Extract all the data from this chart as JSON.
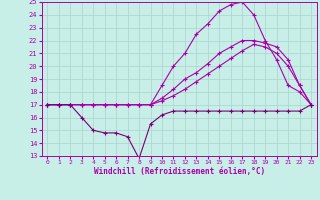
{
  "xlabel": "Windchill (Refroidissement éolien,°C)",
  "ylabel": "",
  "xlim": [
    -0.5,
    23.5
  ],
  "ylim": [
    13,
    25
  ],
  "yticks": [
    13,
    14,
    15,
    16,
    17,
    18,
    19,
    20,
    21,
    22,
    23,
    24,
    25
  ],
  "xticks": [
    0,
    1,
    2,
    3,
    4,
    5,
    6,
    7,
    8,
    9,
    10,
    11,
    12,
    13,
    14,
    15,
    16,
    17,
    18,
    19,
    20,
    21,
    22,
    23
  ],
  "bg_color": "#c8eee8",
  "grid_color": "#aad4cc",
  "line_color": "#aa00aa",
  "line_color_dark": "#770077",
  "line1_x": [
    0,
    1,
    2,
    3,
    4,
    5,
    6,
    7,
    8,
    9,
    10,
    11,
    12,
    13,
    14,
    15,
    16,
    17,
    18,
    19,
    20,
    21,
    22,
    23
  ],
  "line1_y": [
    17.0,
    17.0,
    17.0,
    17.0,
    17.0,
    17.0,
    17.0,
    17.0,
    17.0,
    17.0,
    17.3,
    17.7,
    18.2,
    18.8,
    19.4,
    20.0,
    20.6,
    21.2,
    21.7,
    21.5,
    21.0,
    20.0,
    18.5,
    17.0
  ],
  "line2_x": [
    0,
    1,
    2,
    3,
    4,
    5,
    6,
    7,
    8,
    9,
    10,
    11,
    12,
    13,
    14,
    15,
    16,
    17,
    18,
    19,
    20,
    21,
    22,
    23
  ],
  "line2_y": [
    17.0,
    17.0,
    17.0,
    17.0,
    17.0,
    17.0,
    17.0,
    17.0,
    17.0,
    17.0,
    17.5,
    18.2,
    19.0,
    19.5,
    20.2,
    21.0,
    21.5,
    22.0,
    22.0,
    21.8,
    21.5,
    20.5,
    18.5,
    17.0
  ],
  "line3_x": [
    0,
    1,
    2,
    3,
    4,
    5,
    6,
    7,
    8,
    9,
    10,
    11,
    12,
    13,
    14,
    15,
    16,
    17,
    18,
    19,
    20,
    21,
    22,
    23
  ],
  "line3_y": [
    17.0,
    17.0,
    17.0,
    17.0,
    17.0,
    17.0,
    17.0,
    17.0,
    17.0,
    17.0,
    18.5,
    20.0,
    21.0,
    22.5,
    23.3,
    24.3,
    24.8,
    25.0,
    24.0,
    22.0,
    20.5,
    18.5,
    18.0,
    17.0
  ],
  "line4_x": [
    0,
    1,
    2,
    3,
    4,
    5,
    6,
    7,
    8,
    9,
    10,
    11,
    12,
    13,
    14,
    15,
    16,
    17,
    18,
    19,
    20,
    21,
    22,
    23
  ],
  "line4_y": [
    17.0,
    17.0,
    17.0,
    16.0,
    15.0,
    14.8,
    14.8,
    14.5,
    12.8,
    15.5,
    16.2,
    16.5,
    16.5,
    16.5,
    16.5,
    16.5,
    16.5,
    16.5,
    16.5,
    16.5,
    16.5,
    16.5,
    16.5,
    17.0
  ]
}
